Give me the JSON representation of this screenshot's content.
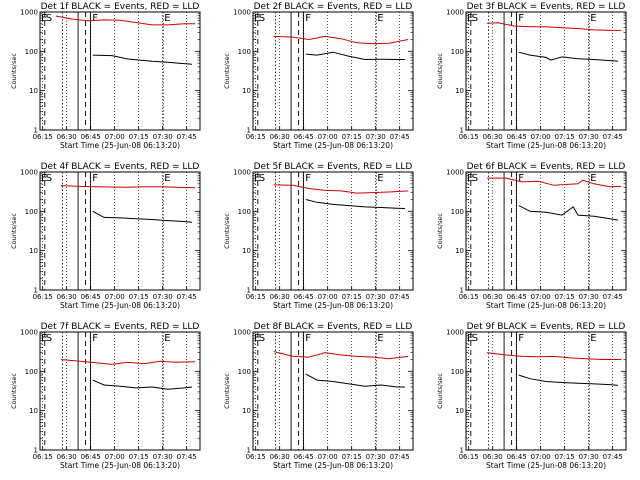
{
  "chart_data": {
    "type": "line",
    "panels": [
      {
        "title": "Det 1f BLACK = Events, RED = LLD",
        "black": [
          [
            33,
            80
          ],
          [
            45,
            78
          ],
          [
            55,
            64
          ],
          [
            70,
            56
          ],
          [
            80,
            53
          ],
          [
            87,
            50
          ],
          [
            95,
            47
          ]
        ],
        "red": [
          [
            10,
            790
          ],
          [
            20,
            660
          ],
          [
            30,
            600
          ],
          [
            40,
            630
          ],
          [
            50,
            620
          ],
          [
            60,
            540
          ],
          [
            70,
            470
          ],
          [
            80,
            470
          ],
          [
            90,
            500
          ],
          [
            97,
            500
          ]
        ]
      },
      {
        "title": "Det 2f BLACK = Events, RED = LLD",
        "black": [
          [
            33,
            85
          ],
          [
            40,
            80
          ],
          [
            50,
            95
          ],
          [
            60,
            75
          ],
          [
            70,
            62
          ],
          [
            80,
            63
          ],
          [
            90,
            62
          ],
          [
            95,
            62
          ]
        ],
        "red": [
          [
            13,
            240
          ],
          [
            25,
            230
          ],
          [
            35,
            200
          ],
          [
            45,
            240
          ],
          [
            55,
            210
          ],
          [
            65,
            165
          ],
          [
            75,
            155
          ],
          [
            85,
            160
          ],
          [
            97,
            200
          ]
        ]
      },
      {
        "title": "Det 3f BLACK = Events, RED = LLD",
        "black": [
          [
            33,
            95
          ],
          [
            40,
            80
          ],
          [
            50,
            70
          ],
          [
            53,
            60
          ],
          [
            60,
            72
          ],
          [
            70,
            65
          ],
          [
            80,
            62
          ],
          [
            90,
            58
          ],
          [
            95,
            56
          ]
        ],
        "red": [
          [
            13,
            520
          ],
          [
            20,
            530
          ],
          [
            30,
            440
          ],
          [
            40,
            420
          ],
          [
            50,
            420
          ],
          [
            60,
            400
          ],
          [
            70,
            380
          ],
          [
            80,
            350
          ],
          [
            90,
            340
          ],
          [
            97,
            340
          ]
        ]
      },
      {
        "title": "Det 4f BLACK = Events, RED = LLD",
        "black": [
          [
            33,
            100
          ],
          [
            40,
            70
          ],
          [
            50,
            68
          ],
          [
            60,
            65
          ],
          [
            70,
            62
          ],
          [
            80,
            58
          ],
          [
            90,
            55
          ],
          [
            95,
            53
          ]
        ],
        "red": [
          [
            13,
            450
          ],
          [
            25,
            430
          ],
          [
            35,
            420
          ],
          [
            45,
            415
          ],
          [
            55,
            410
          ],
          [
            65,
            420
          ],
          [
            75,
            420
          ],
          [
            85,
            410
          ],
          [
            97,
            400
          ]
        ]
      },
      {
        "title": "Det 5f BLACK = Events, RED = LLD",
        "black": [
          [
            33,
            200
          ],
          [
            40,
            170
          ],
          [
            50,
            150
          ],
          [
            60,
            140
          ],
          [
            70,
            130
          ],
          [
            80,
            125
          ],
          [
            90,
            120
          ],
          [
            95,
            118
          ]
        ],
        "red": [
          [
            13,
            470
          ],
          [
            25,
            460
          ],
          [
            35,
            380
          ],
          [
            45,
            340
          ],
          [
            55,
            330
          ],
          [
            65,
            290
          ],
          [
            75,
            300
          ],
          [
            85,
            310
          ],
          [
            97,
            330
          ]
        ]
      },
      {
        "title": "Det 6f BLACK = Events, RED = LLD",
        "black": [
          [
            33,
            140
          ],
          [
            40,
            100
          ],
          [
            50,
            95
          ],
          [
            60,
            80
          ],
          [
            67,
            130
          ],
          [
            70,
            80
          ],
          [
            80,
            75
          ],
          [
            90,
            65
          ],
          [
            95,
            60
          ]
        ],
        "red": [
          [
            13,
            700
          ],
          [
            25,
            700
          ],
          [
            35,
            560
          ],
          [
            45,
            580
          ],
          [
            55,
            460
          ],
          [
            70,
            500
          ],
          [
            73,
            620
          ],
          [
            80,
            500
          ],
          [
            90,
            420
          ],
          [
            97,
            430
          ]
        ]
      },
      {
        "title": "Det 7f BLACK = Events, RED = LLD",
        "black": [
          [
            33,
            60
          ],
          [
            40,
            45
          ],
          [
            50,
            42
          ],
          [
            60,
            38
          ],
          [
            70,
            40
          ],
          [
            80,
            35
          ],
          [
            90,
            38
          ],
          [
            95,
            40
          ]
        ],
        "red": [
          [
            13,
            200
          ],
          [
            25,
            180
          ],
          [
            35,
            165
          ],
          [
            45,
            150
          ],
          [
            55,
            170
          ],
          [
            65,
            155
          ],
          [
            75,
            180
          ],
          [
            85,
            170
          ],
          [
            97,
            175
          ]
        ]
      },
      {
        "title": "Det 8f BLACK = Events, RED = LLD",
        "black": [
          [
            33,
            85
          ],
          [
            40,
            60
          ],
          [
            50,
            55
          ],
          [
            60,
            48
          ],
          [
            70,
            42
          ],
          [
            80,
            45
          ],
          [
            90,
            40
          ],
          [
            95,
            40
          ]
        ],
        "red": [
          [
            13,
            320
          ],
          [
            25,
            240
          ],
          [
            35,
            230
          ],
          [
            45,
            300
          ],
          [
            55,
            260
          ],
          [
            65,
            240
          ],
          [
            75,
            230
          ],
          [
            85,
            210
          ],
          [
            97,
            240
          ]
        ]
      },
      {
        "title": "Det 9f BLACK = Events, RED = LLD",
        "black": [
          [
            33,
            80
          ],
          [
            40,
            65
          ],
          [
            50,
            55
          ],
          [
            60,
            52
          ],
          [
            70,
            50
          ],
          [
            80,
            48
          ],
          [
            90,
            46
          ],
          [
            95,
            44
          ]
        ],
        "red": [
          [
            13,
            300
          ],
          [
            25,
            260
          ],
          [
            35,
            240
          ],
          [
            45,
            235
          ],
          [
            55,
            240
          ],
          [
            65,
            220
          ],
          [
            75,
            210
          ],
          [
            85,
            200
          ],
          [
            97,
            200
          ]
        ]
      }
    ],
    "x_axis": {
      "label": "Start Time (25-Jun-08 06:13:20)",
      "ticks": [
        "06:15",
        "06:30",
        "06:45",
        "07:00",
        "07:15",
        "07:30",
        "07:45"
      ],
      "tick_minutes": [
        1.67,
        16.67,
        31.67,
        46.67,
        61.67,
        76.67,
        91.67
      ],
      "range_minutes": [
        0,
        100
      ]
    },
    "y_axis": {
      "label": "Counts/sec",
      "scale": "log",
      "ticks": [
        "1",
        "10",
        "100",
        "1000"
      ],
      "tick_values": [
        1,
        10,
        100,
        1000
      ],
      "range": [
        1,
        1000
      ]
    },
    "segment_labels": [
      "E",
      "S",
      "F",
      "E"
    ],
    "segment_label_x": [
      0,
      3,
      32,
      77
    ],
    "markers": {
      "dotted": [
        14,
        77
      ],
      "dashed": [
        3,
        28.5
      ],
      "solid": [
        23.8,
        31.5
      ]
    },
    "series_colors": {
      "black": "#000000",
      "red": "#d40000"
    }
  }
}
